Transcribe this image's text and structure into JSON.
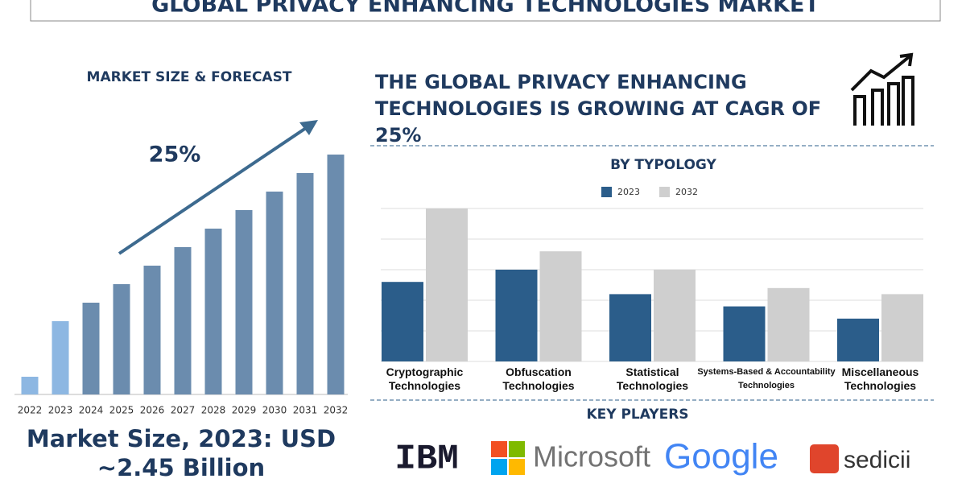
{
  "header": {
    "title": "GLOBAL PRIVACY ENHANCING TECHNOLOGIES MARKET"
  },
  "headline": "THE GLOBAL PRIVACY ENHANCING TECHNOLOGIES IS GROWING AT CAGR OF 25%",
  "market_size": {
    "line1": "Market Size, 2023: USD",
    "line2": "~2.45 Billion"
  },
  "key_players": {
    "title": "KEY PLAYERS",
    "logos": [
      "IBM",
      "Microsoft",
      "Google",
      "sedicii"
    ]
  },
  "chart_data": [
    {
      "type": "bar",
      "title": "MARKET SIZE & FORECAST",
      "annotation": "25%",
      "categories": [
        "2022",
        "2023",
        "2024",
        "2025",
        "2026",
        "2027",
        "2028",
        "2029",
        "2030",
        "2031",
        "2032"
      ],
      "values": [
        22,
        91,
        114,
        137,
        160,
        183,
        206,
        229,
        252,
        275,
        298
      ],
      "colors": [
        "#8db7e2",
        "#8db7e2",
        "#6b8cae",
        "#6b8cae",
        "#6b8cae",
        "#6b8cae",
        "#6b8cae",
        "#6b8cae",
        "#6b8cae",
        "#6b8cae",
        "#6b8cae"
      ]
    },
    {
      "type": "grouped_bar",
      "title": "BY TYPOLOGY",
      "categories": [
        "Cryptographic Technologies",
        "Obfuscation Technologies",
        "Statistical Technologies",
        "Systems-Based & Accountability Technologies",
        "Miscellaneous Technologies"
      ],
      "series": [
        {
          "name": "2023",
          "color": "#2b5d8a",
          "values": [
            2.6,
            3.0,
            2.2,
            1.8,
            1.4
          ]
        },
        {
          "name": "2032",
          "color": "#cfcfcf",
          "values": [
            5.0,
            3.6,
            3.0,
            2.4,
            2.2
          ]
        }
      ],
      "ylim": [
        0,
        5
      ],
      "yticks": [
        0,
        1,
        2,
        3,
        4,
        5
      ],
      "grid": true
    }
  ]
}
